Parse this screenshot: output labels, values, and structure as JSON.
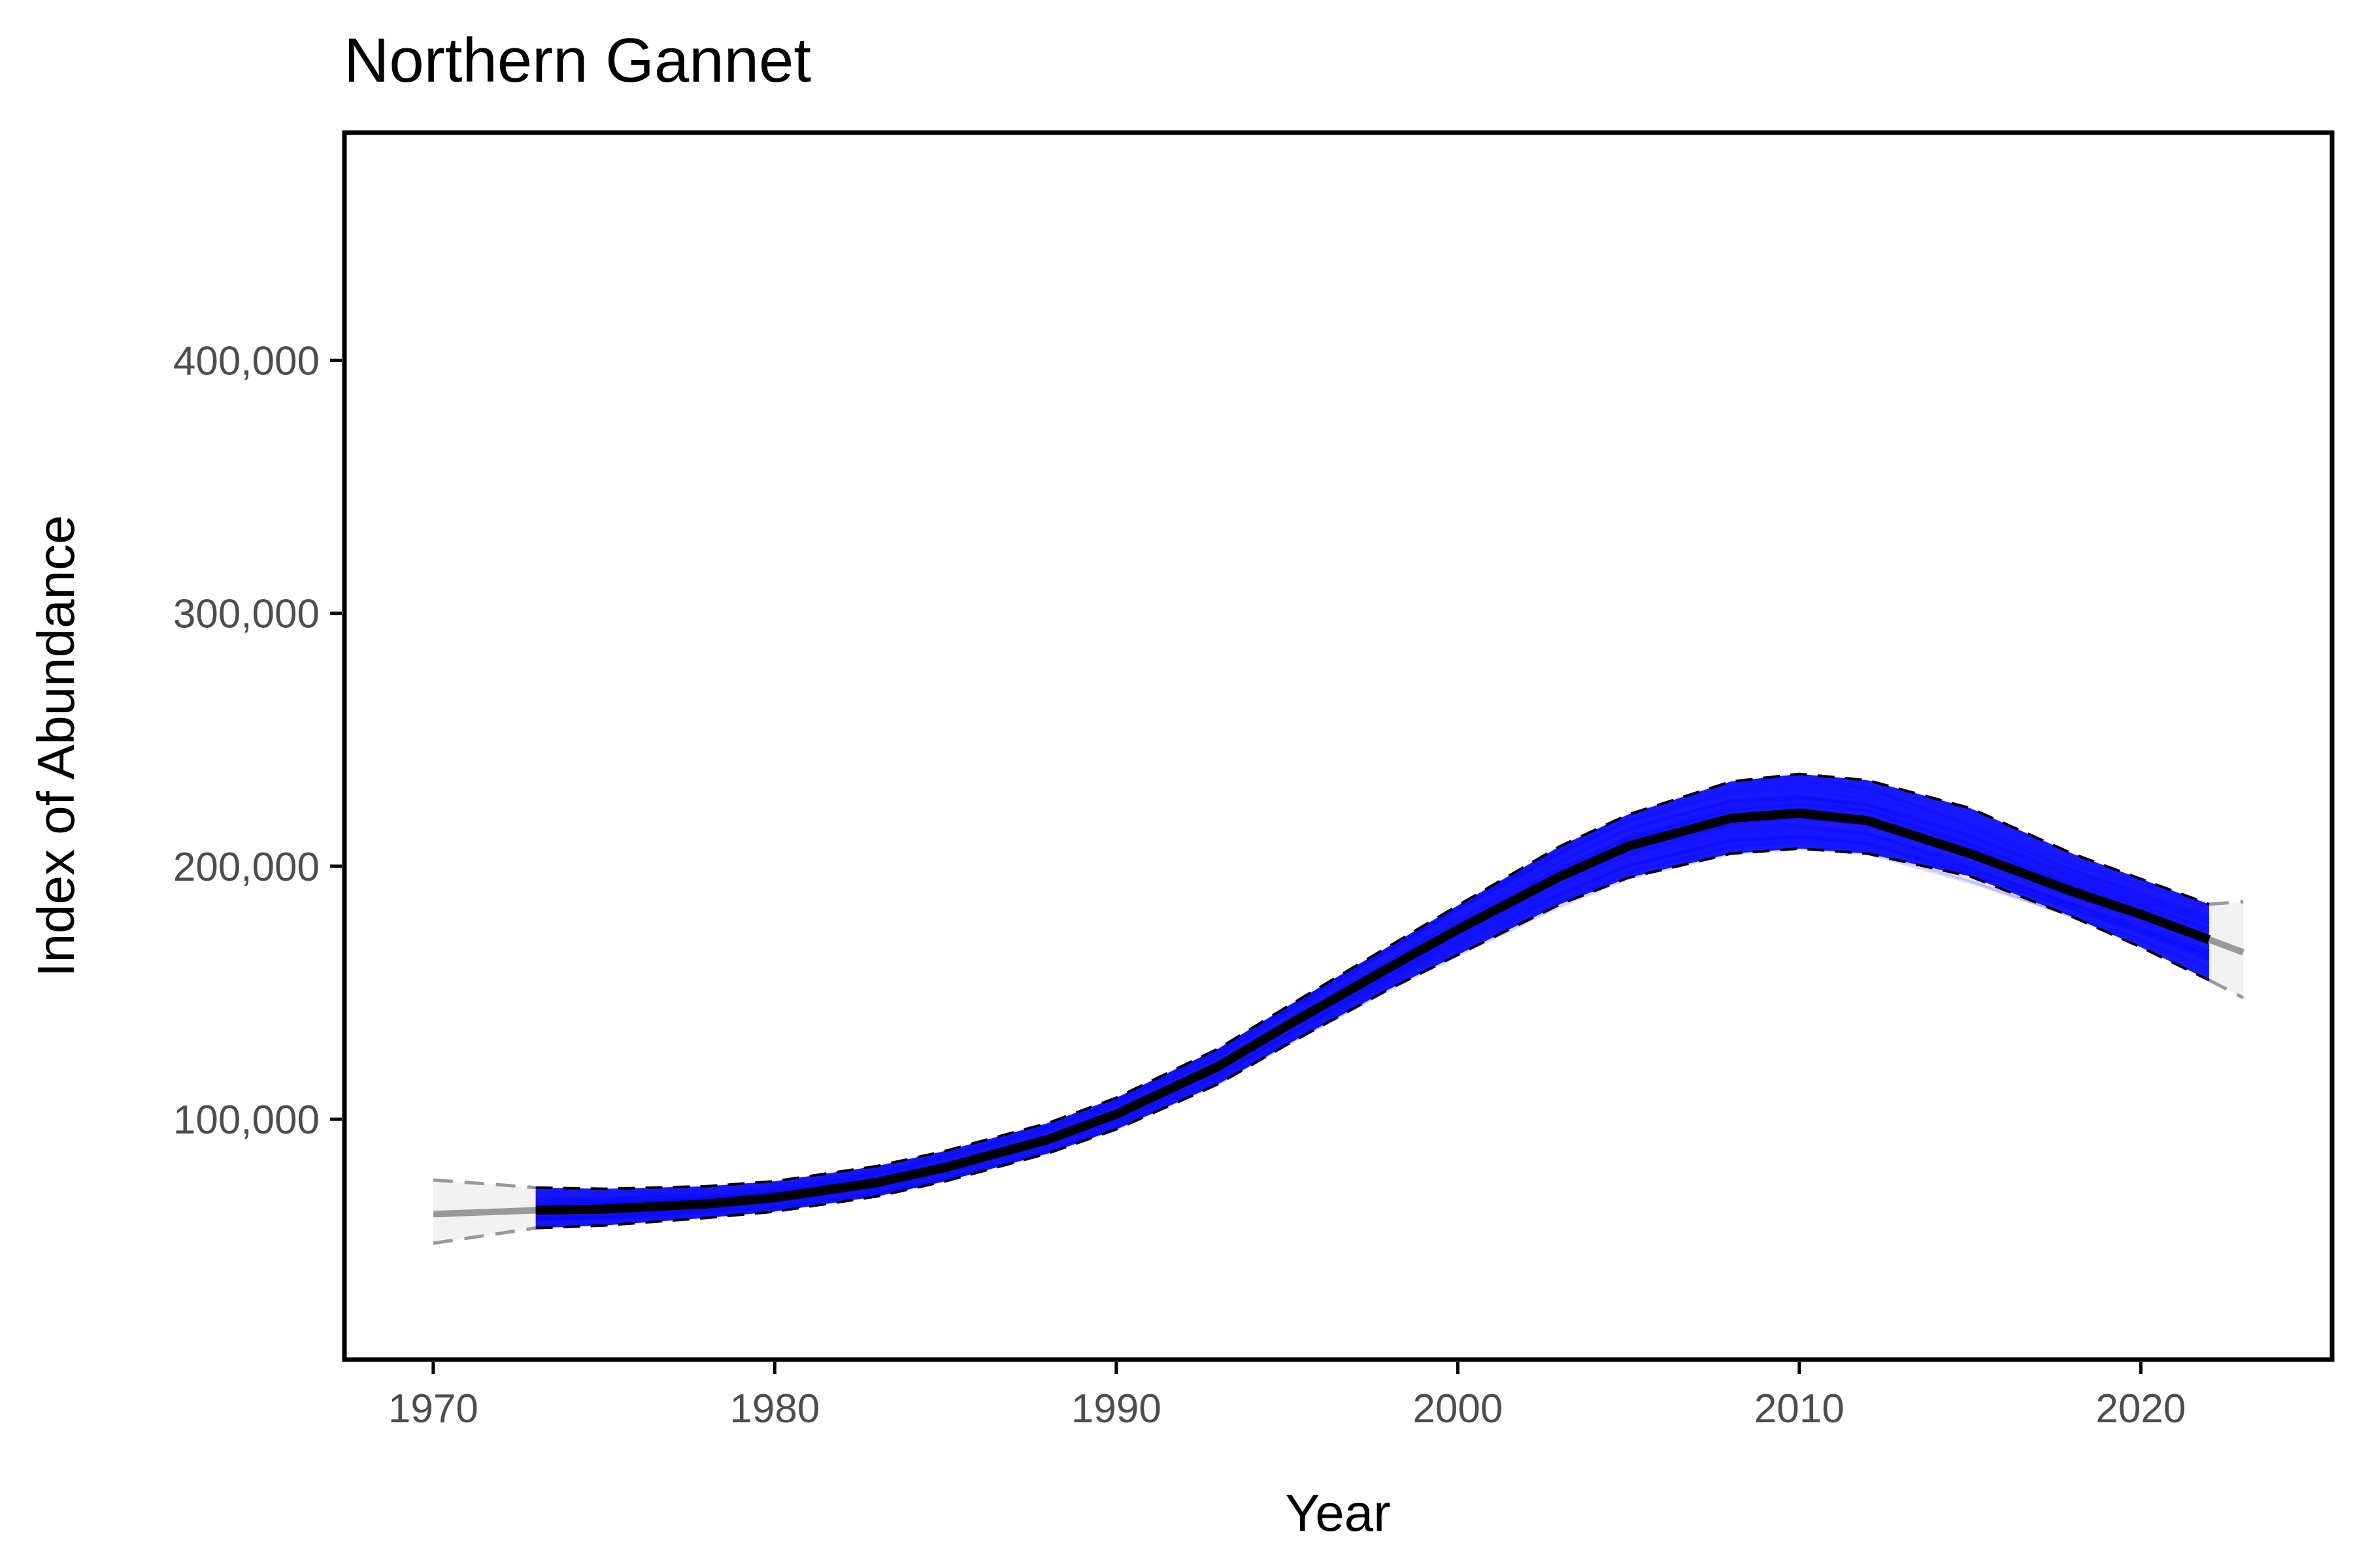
{
  "chart_data": {
    "type": "line",
    "title": "Northern Gannet",
    "xlabel": "Year",
    "ylabel": "Index of Abundance",
    "xlim": [
      1967.4,
      2025.6
    ],
    "ylim": [
      5000,
      490000
    ],
    "x_ticks": [
      1970,
      1980,
      1990,
      2000,
      2010,
      2020
    ],
    "x_tick_labels": [
      "1970",
      "1980",
      "1990",
      "2000",
      "2010",
      "2020"
    ],
    "y_ticks": [
      100000,
      200000,
      300000,
      400000
    ],
    "y_tick_labels": [
      "100,000",
      "200,000",
      "300,000",
      "400,000"
    ],
    "grid": false,
    "legend": "none",
    "colors": {
      "trend": "#000000",
      "samples": "#0000ff",
      "extrapolation": "#999999",
      "extrapolation_band": "#f2f2f2",
      "axis": "#000000"
    },
    "series": [
      {
        "x": [
          1973,
          1975,
          1978,
          1980,
          1983,
          1985,
          1988,
          1990,
          1993,
          1995,
          1998,
          2000,
          2003,
          2005,
          2008,
          2010,
          2012,
          2015,
          2018,
          2020,
          2022
        ],
        "values": [
          64000,
          64500,
          66500,
          69000,
          75000,
          81000,
          92000,
          102000,
          121000,
          137000,
          160000,
          175000,
          196000,
          208000,
          219000,
          221000,
          218000,
          205000,
          190000,
          181000,
          171000
        ],
        "lower": [
          57000,
          58000,
          61000,
          63500,
          69500,
          75500,
          86500,
          96000,
          114000,
          129500,
          151500,
          165000,
          185000,
          195500,
          205000,
          207000,
          205000,
          196000,
          180000,
          168000,
          155000
        ],
        "upper": [
          73000,
          72500,
          73500,
          75500,
          81500,
          87500,
          98500,
          108500,
          128000,
          144500,
          168500,
          184500,
          208000,
          220500,
          233500,
          236500,
          234000,
          223000,
          205000,
          195000,
          185000
        ]
      },
      {
        "x": [
          1970,
          1971,
          1972,
          1973
        ],
        "values": [
          62500,
          63000,
          63500,
          64000
        ],
        "lower": [
          51000,
          53000,
          55000,
          57000
        ],
        "upper": [
          76000,
          75000,
          74000,
          73000
        ]
      },
      {
        "x": [
          2022,
          2023
        ],
        "values": [
          171000,
          166000
        ],
        "lower": [
          155000,
          148000
        ],
        "upper": [
          185000,
          186000
        ]
      }
    ]
  }
}
